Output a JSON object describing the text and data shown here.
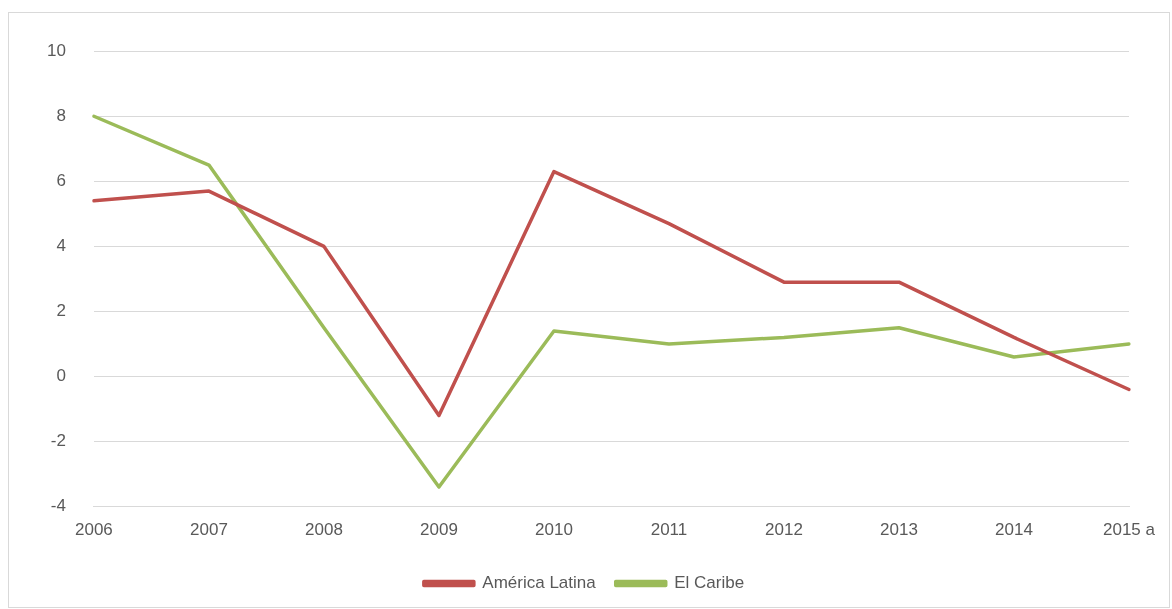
{
  "chart_data": {
    "type": "line",
    "categories": [
      "2006",
      "2007",
      "2008",
      "2009",
      "2010",
      "2011",
      "2012",
      "2013",
      "2014",
      "2015 a"
    ],
    "series": [
      {
        "name": "América Latina",
        "color": "#c0504d",
        "values": [
          5.4,
          5.7,
          4.0,
          -1.2,
          6.3,
          4.7,
          2.9,
          2.9,
          1.2,
          -0.4
        ]
      },
      {
        "name": "El Caribe",
        "color": "#9bbb59",
        "values": [
          8.0,
          6.5,
          1.5,
          -3.4,
          1.4,
          1.0,
          1.2,
          1.5,
          0.6,
          1.0
        ]
      }
    ],
    "ylim": [
      -4,
      10
    ],
    "yticks": [
      -4,
      -2,
      0,
      2,
      4,
      6,
      8,
      10
    ],
    "grid": "y",
    "legend": "bottom",
    "marker": "none",
    "line_style": "solid"
  }
}
